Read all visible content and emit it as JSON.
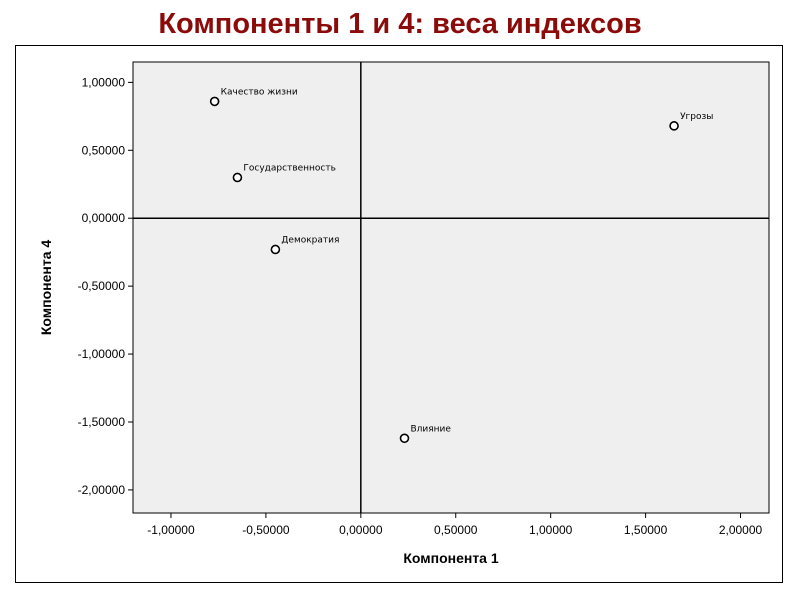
{
  "title": "Компоненты 1 и 4: веса индексов",
  "colors": {
    "title": "#8b0b0b",
    "plot_bg": "#efefef",
    "marker": "#000000"
  },
  "chart_data": {
    "type": "scatter",
    "title": "Компоненты 1 и 4: веса индексов",
    "xlabel": "Компонента 1",
    "ylabel": "Компонента 4",
    "xlim": [
      -1.2,
      2.15
    ],
    "ylim": [
      -2.17,
      1.15
    ],
    "xticks": [
      -1.0,
      -0.5,
      0.0,
      0.5,
      1.0,
      1.5,
      2.0
    ],
    "xtick_labels": [
      "-1,00000",
      "-0,50000",
      "0,00000",
      "0,50000",
      "1,00000",
      "1,50000",
      "2,00000"
    ],
    "yticks": [
      1.0,
      0.5,
      0.0,
      -0.5,
      -1.0,
      -1.5,
      -2.0
    ],
    "ytick_labels": [
      "1,00000",
      "0,50000",
      "0,00000",
      "-0,50000",
      "-1,00000",
      "-1,50000",
      "-2,00000"
    ],
    "reference_lines": {
      "x": 0,
      "y": 0
    },
    "grid": false,
    "points": [
      {
        "label": "Качество жизни",
        "x": -0.77,
        "y": 0.86
      },
      {
        "label": "Государственность",
        "x": -0.65,
        "y": 0.3
      },
      {
        "label": "Демократия",
        "x": -0.45,
        "y": -0.23
      },
      {
        "label": "Угрозы",
        "x": 1.65,
        "y": 0.68
      },
      {
        "label": "Влияние",
        "x": 0.23,
        "y": -1.62
      }
    ]
  }
}
